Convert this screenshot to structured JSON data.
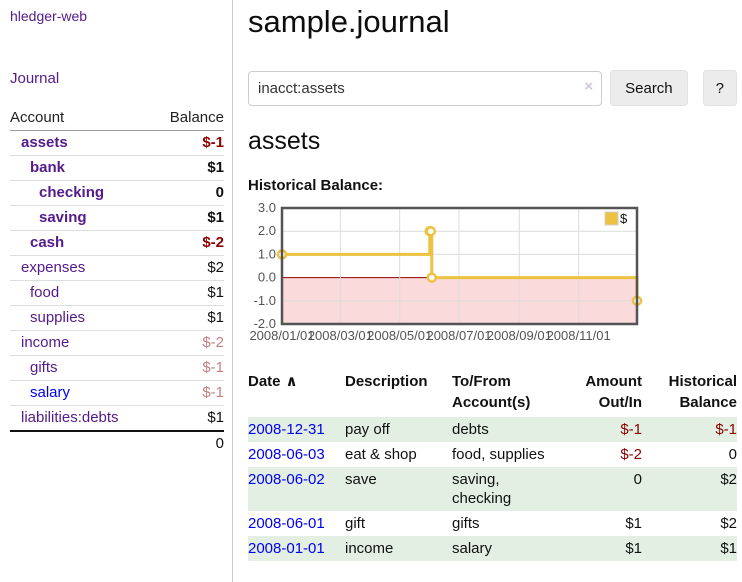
{
  "brand": "hledger-web",
  "nav": {
    "journal_label": "Journal"
  },
  "sidebar_accounts": {
    "headers": {
      "account": "Account",
      "balance": "Balance"
    },
    "rows": [
      {
        "name": "assets",
        "balance": "$-1",
        "indent": 1,
        "bold": true,
        "link_style": "visited",
        "balance_style": "negstrong"
      },
      {
        "name": "bank",
        "balance": "$1",
        "indent": 2,
        "bold": true,
        "link_style": "visited",
        "balance_style": "normal"
      },
      {
        "name": "checking",
        "balance": "0",
        "indent": 3,
        "bold": true,
        "link_style": "visited",
        "balance_style": "normal"
      },
      {
        "name": "saving",
        "balance": "$1",
        "indent": 3,
        "bold": true,
        "link_style": "visited",
        "balance_style": "normal"
      },
      {
        "name": "cash",
        "balance": "$-2",
        "indent": 2,
        "bold": true,
        "link_style": "visited",
        "balance_style": "negstrong"
      },
      {
        "name": "expenses",
        "balance": "$2",
        "indent": 1,
        "bold": false,
        "link_style": "visited",
        "balance_style": "normal"
      },
      {
        "name": "food",
        "balance": "$1",
        "indent": 2,
        "bold": false,
        "link_style": "visited",
        "balance_style": "normal"
      },
      {
        "name": "supplies",
        "balance": "$1",
        "indent": 2,
        "bold": false,
        "link_style": "visited",
        "balance_style": "normal"
      },
      {
        "name": "income",
        "balance": "$-2",
        "indent": 1,
        "bold": false,
        "link_style": "visited",
        "balance_style": "negsoft"
      },
      {
        "name": "gifts",
        "balance": "$-1",
        "indent": 2,
        "bold": false,
        "link_style": "visited",
        "balance_style": "negsoft"
      },
      {
        "name": "salary",
        "balance": "$-1",
        "indent": 2,
        "bold": false,
        "link_style": "unvisited",
        "balance_style": "negsoft"
      },
      {
        "name": "liabilities:debts",
        "balance": "$1",
        "indent": 1,
        "bold": false,
        "link_style": "visited",
        "balance_style": "normal"
      }
    ],
    "total": "0"
  },
  "main": {
    "title": "sample.journal",
    "search": {
      "value": "inacct:assets",
      "clear_icon": "×",
      "search_label": "Search",
      "help_label": "?"
    },
    "account_heading": "assets",
    "chart_label": "Historical Balance:"
  },
  "chart_data": {
    "type": "line",
    "step": true,
    "title": "Historical Balance",
    "series": [
      {
        "name": "$",
        "color": "#edc240",
        "points": [
          [
            "2008-01-01",
            1
          ],
          [
            "2008-06-01",
            2
          ],
          [
            "2008-06-02",
            2
          ],
          [
            "2008-06-03",
            0
          ],
          [
            "2008-12-31",
            -1
          ]
        ]
      }
    ],
    "xrange": [
      "2008-01-01",
      "2008-12-31"
    ],
    "ylim": [
      -2,
      3
    ],
    "yticks": [
      {
        "v": 3,
        "label": "3.0"
      },
      {
        "v": 2,
        "label": "2.0"
      },
      {
        "v": 1,
        "label": "1.0"
      },
      {
        "v": 0,
        "label": "0.0"
      },
      {
        "v": -1,
        "label": "-1.0"
      },
      {
        "v": -2,
        "label": "-2.0"
      }
    ],
    "xticks": [
      {
        "x": "2008-01-01",
        "label": "2008/01/01"
      },
      {
        "x": "2008-03-01",
        "label": "2008/03/01"
      },
      {
        "x": "2008-05-01",
        "label": "2008/05/01"
      },
      {
        "x": "2008-07-01",
        "label": "2008/07/01"
      },
      {
        "x": "2008-09-01",
        "label": "2008/09/01"
      },
      {
        "x": "2008-11-01",
        "label": "2008/11/01"
      }
    ],
    "grid": true,
    "legend_position": "top-right",
    "below_zero_shaded": true
  },
  "register": {
    "headers": {
      "date": "Date",
      "description": "Description",
      "accounts": "To/From Account(s)",
      "amount": "Amount Out/In",
      "balance": "Historical Balance"
    },
    "sort_indicator": "∧",
    "rows": [
      {
        "date": "2008-12-31",
        "description": "pay off",
        "accounts": "debts",
        "amount": "$-1",
        "balance": "$-1",
        "amount_negative": true,
        "balance_negative": true
      },
      {
        "date": "2008-06-03",
        "description": "eat & shop",
        "accounts": "food, supplies",
        "amount": "$-2",
        "balance": "0",
        "amount_negative": true,
        "balance_negative": false
      },
      {
        "date": "2008-06-02",
        "description": "save",
        "accounts": "saving, checking",
        "amount": "0",
        "balance": "$2",
        "amount_negative": false,
        "balance_negative": false
      },
      {
        "date": "2008-06-01",
        "description": "gift",
        "accounts": "gifts",
        "amount": "$1",
        "balance": "$2",
        "amount_negative": false,
        "balance_negative": false
      },
      {
        "date": "2008-01-01",
        "description": "income",
        "accounts": "salary",
        "amount": "$1",
        "balance": "$1",
        "amount_negative": false,
        "balance_negative": false
      }
    ]
  },
  "colors": {
    "series_gold": "#edc240",
    "negative_strong": "#8b0000",
    "negative_soft": "#c3807f",
    "link_visited": "#551a8b",
    "link_unvisited": "#0000ee",
    "row_stripe": "#e3efe3",
    "below_zero_fill": "#fadada",
    "zero_line": "#8b0000",
    "plot_border": "#545454",
    "gridline": "#dcdcdc"
  }
}
